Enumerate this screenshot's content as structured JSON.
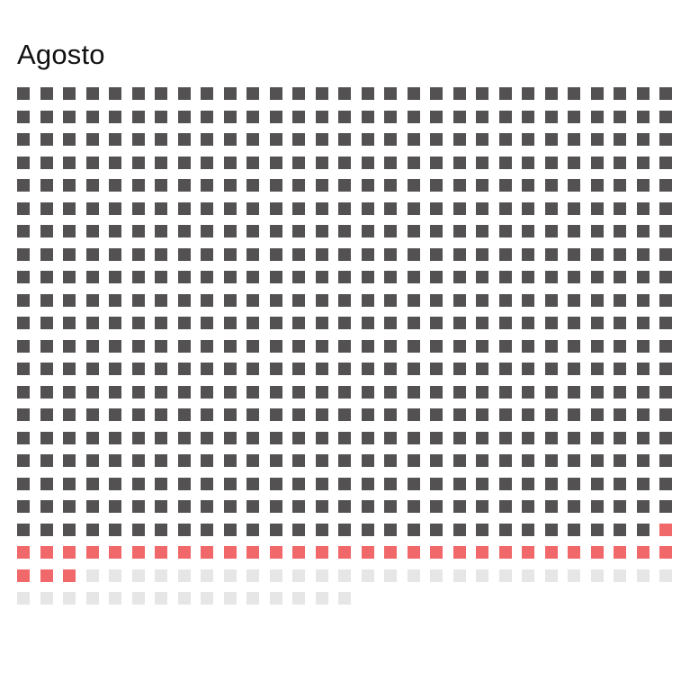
{
  "title": "Agosto",
  "chart_data": {
    "type": "waffle",
    "title": "Agosto",
    "columns": 29,
    "total_cells": 653,
    "series": [
      {
        "color": "#545152",
        "value": 579
      },
      {
        "color": "#f0686a",
        "value": 33
      },
      {
        "color": "#e6e6e6",
        "value": 41
      }
    ]
  }
}
